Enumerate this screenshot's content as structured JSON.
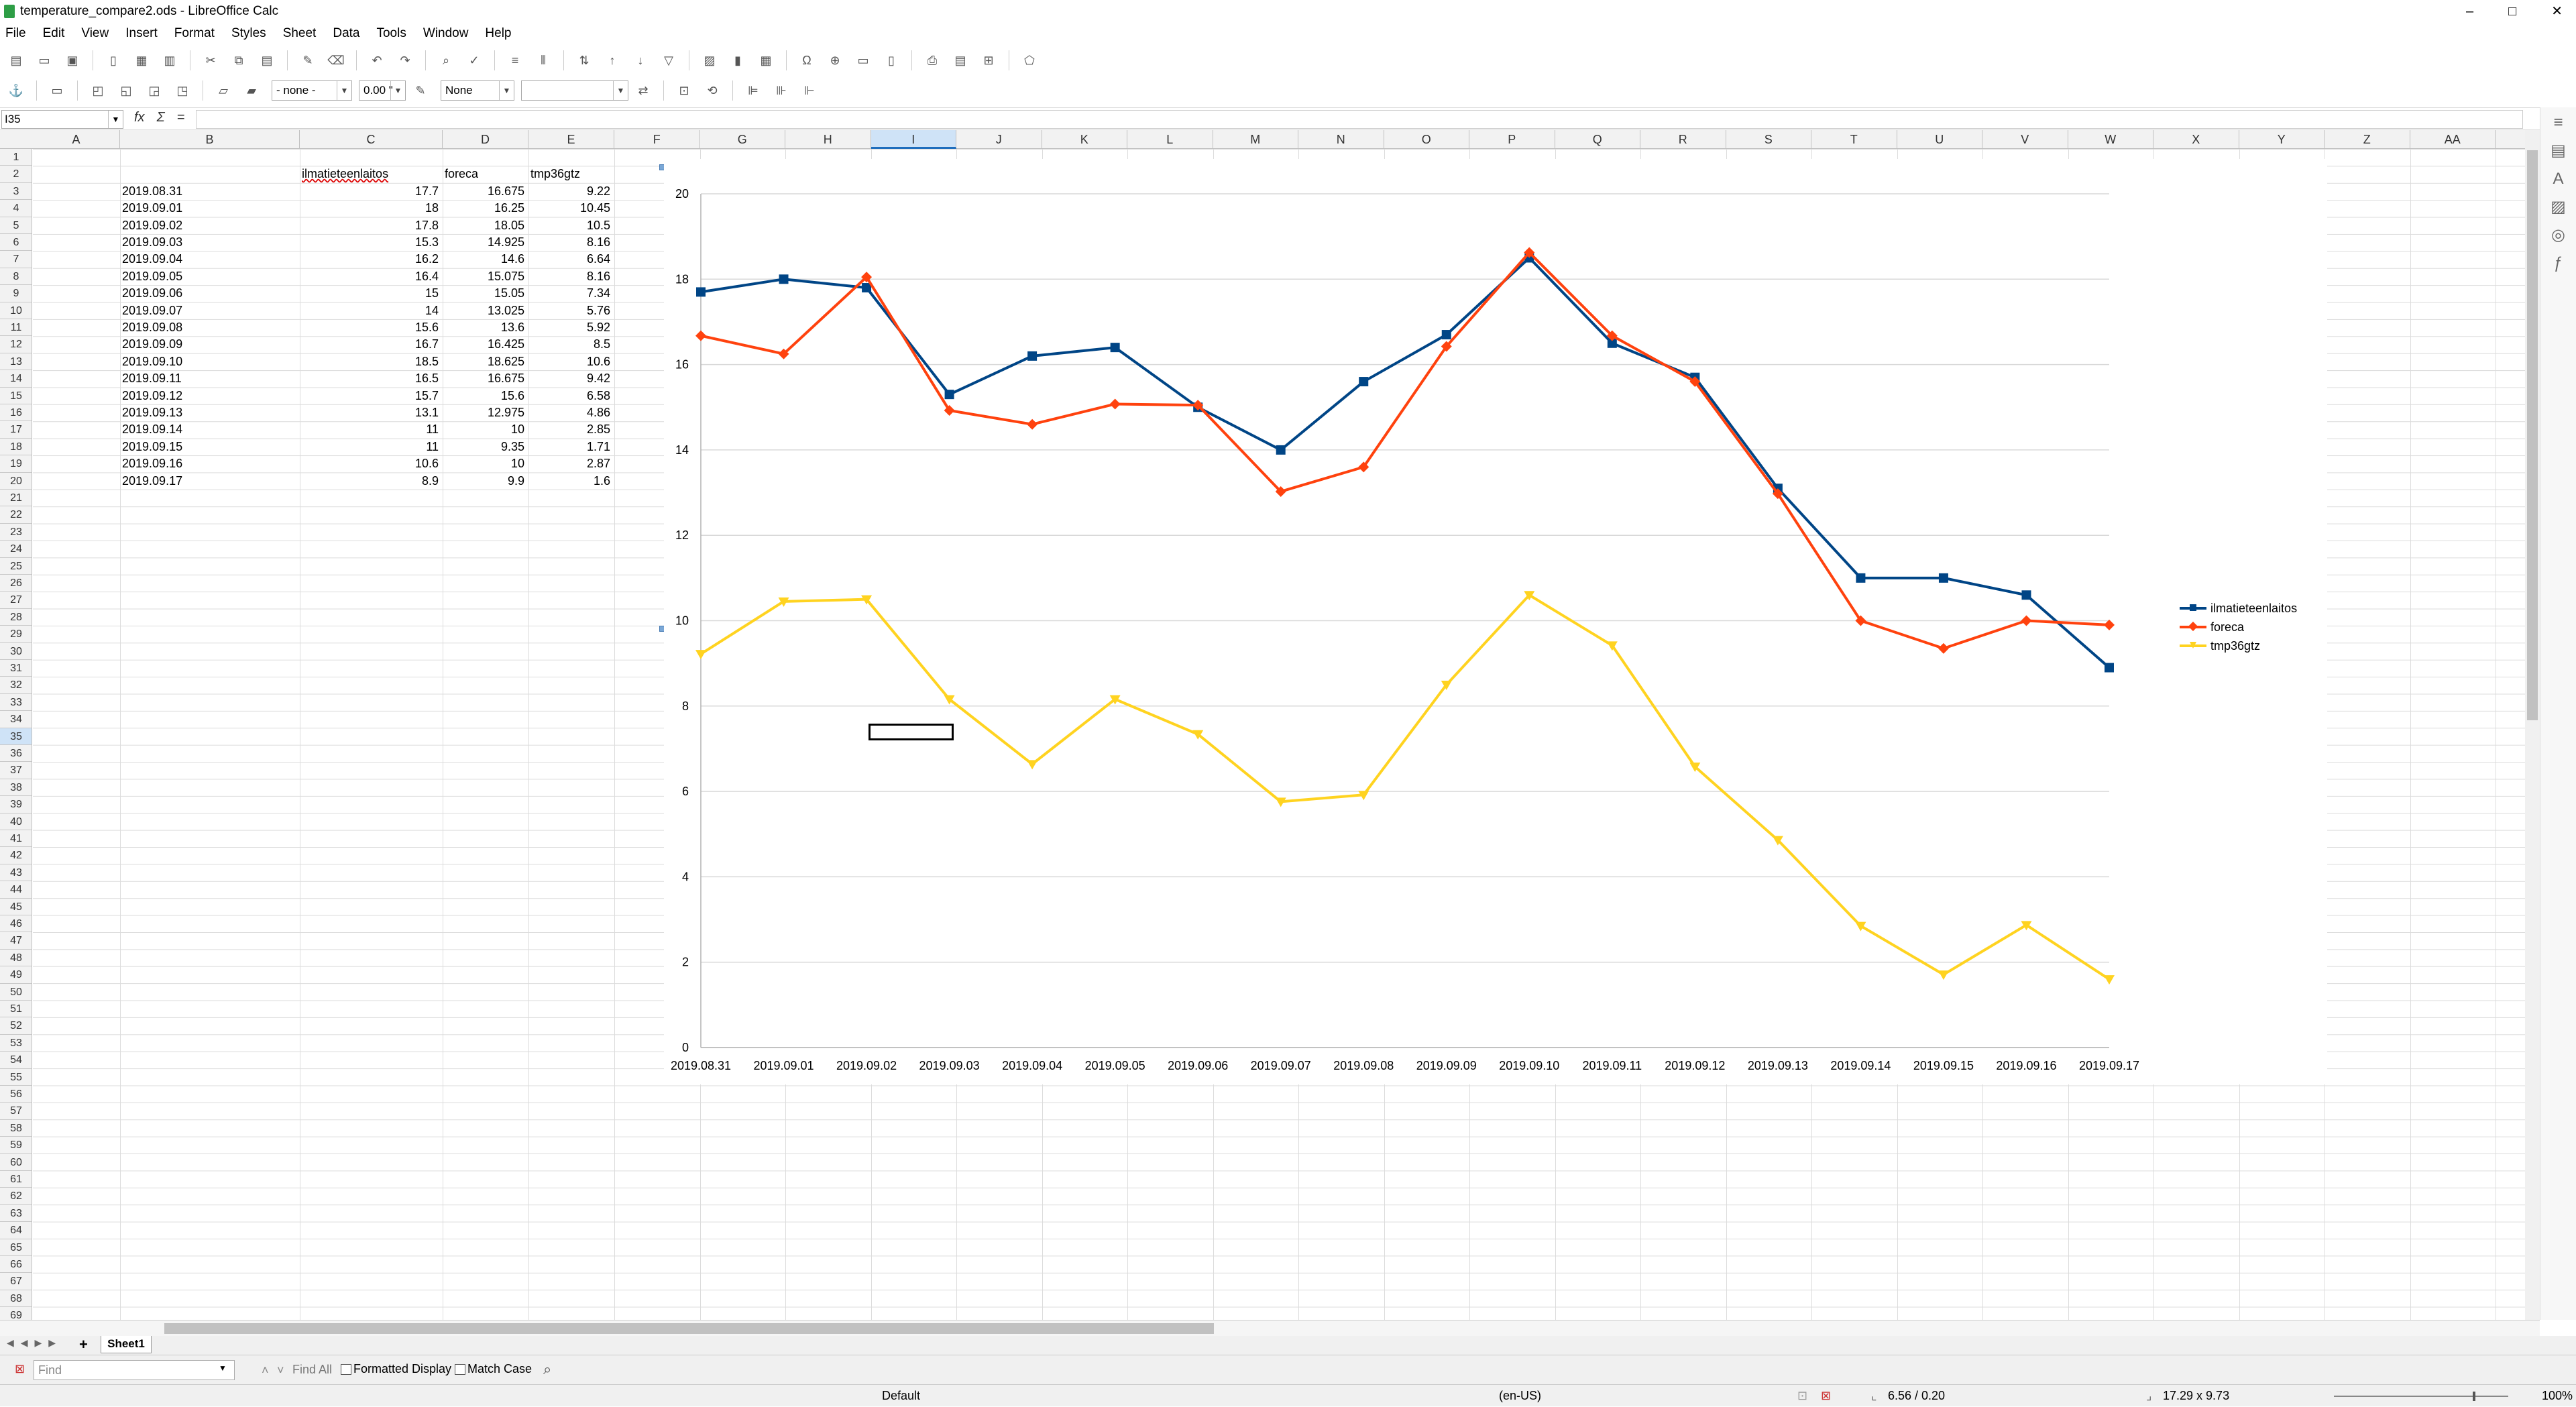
{
  "window": {
    "title": "temperature_compare2.ods - LibreOffice Calc",
    "controls": [
      "–",
      "□",
      "✕"
    ]
  },
  "menu": [
    "File",
    "Edit",
    "View",
    "Insert",
    "Format",
    "Styles",
    "Sheet",
    "Data",
    "Tools",
    "Window",
    "Help"
  ],
  "toolbar": {
    "style_box": "- none -",
    "number_box": "0.00 \"",
    "border_box": "None"
  },
  "formula_bar": {
    "cell_ref": "I35",
    "fx": "fx",
    "sum": "Σ",
    "eq": "="
  },
  "columns": [
    "A",
    "B",
    "C",
    "D",
    "E",
    "F",
    "G",
    "H",
    "I",
    "J",
    "K",
    "L",
    "M",
    "N",
    "O",
    "P",
    "Q",
    "R",
    "S",
    "T",
    "U",
    "V",
    "W",
    "X",
    "Y",
    "Z",
    "AA"
  ],
  "selected_column": "I",
  "selected_row": 35,
  "sheet": {
    "headers": {
      "c": "ilmatieteenlaitos",
      "d": "foreca",
      "e": "tmp36gtz"
    },
    "rows": [
      [
        "2019.08.31",
        "17.7",
        "16.675",
        "9.22"
      ],
      [
        "2019.09.01",
        "18",
        "16.25",
        "10.45"
      ],
      [
        "2019.09.02",
        "17.8",
        "18.05",
        "10.5"
      ],
      [
        "2019.09.03",
        "15.3",
        "14.925",
        "8.16"
      ],
      [
        "2019.09.04",
        "16.2",
        "14.6",
        "6.64"
      ],
      [
        "2019.09.05",
        "16.4",
        "15.075",
        "8.16"
      ],
      [
        "2019.09.06",
        "15",
        "15.05",
        "7.34"
      ],
      [
        "2019.09.07",
        "14",
        "13.025",
        "5.76"
      ],
      [
        "2019.09.08",
        "15.6",
        "13.6",
        "5.92"
      ],
      [
        "2019.09.09",
        "16.7",
        "16.425",
        "8.5"
      ],
      [
        "2019.09.10",
        "18.5",
        "18.625",
        "10.6"
      ],
      [
        "2019.09.11",
        "16.5",
        "16.675",
        "9.42"
      ],
      [
        "2019.09.12",
        "15.7",
        "15.6",
        "6.58"
      ],
      [
        "2019.09.13",
        "13.1",
        "12.975",
        "4.86"
      ],
      [
        "2019.09.14",
        "11",
        "10",
        "2.85"
      ],
      [
        "2019.09.15",
        "11",
        "9.35",
        "1.71"
      ],
      [
        "2019.09.16",
        "10.6",
        "10",
        "2.87"
      ],
      [
        "2019.09.17",
        "8.9",
        "9.9",
        "1.6"
      ]
    ]
  },
  "chart_data": {
    "type": "line",
    "categories": [
      "2019.08.31",
      "2019.09.01",
      "2019.09.02",
      "2019.09.03",
      "2019.09.04",
      "2019.09.05",
      "2019.09.06",
      "2019.09.07",
      "2019.09.08",
      "2019.09.09",
      "2019.09.10",
      "2019.09.11",
      "2019.09.12",
      "2019.09.13",
      "2019.09.14",
      "2019.09.15",
      "2019.09.16",
      "2019.09.17"
    ],
    "series": [
      {
        "name": "ilmatieteenlaitos",
        "color": "#004586",
        "marker": "square",
        "values": [
          17.7,
          18,
          17.8,
          15.3,
          16.2,
          16.4,
          15,
          14,
          15.6,
          16.7,
          18.5,
          16.5,
          15.7,
          13.1,
          11,
          11,
          10.6,
          8.9
        ]
      },
      {
        "name": "foreca",
        "color": "#ff420e",
        "marker": "diamond",
        "values": [
          16.675,
          16.25,
          18.05,
          14.925,
          14.6,
          15.075,
          15.05,
          13.025,
          13.6,
          16.425,
          18.625,
          16.675,
          15.6,
          12.975,
          10,
          9.35,
          10,
          9.9
        ]
      },
      {
        "name": "tmp36gtz",
        "color": "#ffd320",
        "marker": "triangle",
        "values": [
          9.22,
          10.45,
          10.5,
          8.16,
          6.64,
          8.16,
          7.34,
          5.76,
          5.92,
          8.5,
          10.6,
          9.42,
          6.58,
          4.86,
          2.85,
          1.71,
          2.87,
          1.6
        ]
      }
    ],
    "ylim": [
      0,
      20
    ],
    "yticks": [
      "0",
      "2",
      "4",
      "6",
      "8",
      "10",
      "12",
      "14",
      "16",
      "18",
      "20"
    ],
    "grid": true,
    "legend": "right"
  },
  "tabs": {
    "add": "+",
    "sheet": "Sheet1"
  },
  "findbar": {
    "placeholder": "Find",
    "find_all": "Find All",
    "formatted": "Formatted Display",
    "match_case": "Match Case"
  },
  "status": {
    "style": "Default",
    "lang": "(en-US)",
    "pos": "6.56 / 0.20",
    "size": "17.29 x 9.73",
    "zoom": "100%"
  }
}
